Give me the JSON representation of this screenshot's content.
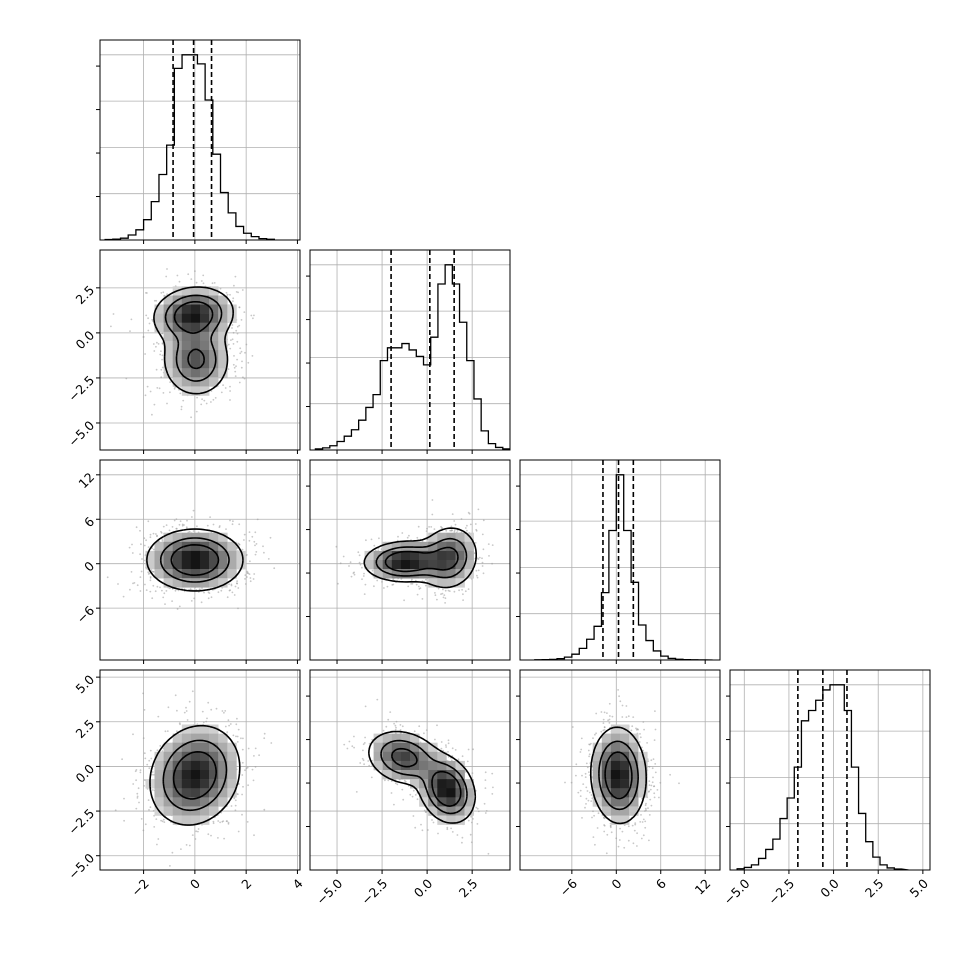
{
  "chart_data": {
    "type": "corner",
    "grid": true,
    "xlabel": "",
    "ylabel": "",
    "n_params": 4,
    "axes_ranges": [
      [
        -3.7,
        4.1
      ],
      [
        -6.5,
        4.6
      ],
      [
        -13,
        14
      ],
      [
        -5.8,
        5.4
      ]
    ],
    "ticks": [
      [
        "−2",
        "0",
        "2",
        "4"
      ],
      [
        "−5.0",
        "−2.5",
        "0.0",
        "2.5"
      ],
      [
        "−6",
        "0",
        "6",
        "12"
      ],
      [
        "−5.0",
        "−2.5",
        "0.0",
        "2.5",
        "5.0"
      ]
    ],
    "tick_values": [
      [
        -2,
        0,
        2,
        4
      ],
      [
        -5,
        -2.5,
        0,
        2.5
      ],
      [
        -6,
        0,
        6,
        12
      ],
      [
        -5,
        -2.5,
        0,
        2.5,
        5
      ]
    ],
    "quantiles": [
      [
        -0.85,
        -0.05,
        0.65
      ],
      [
        -2.0,
        0.15,
        1.5
      ],
      [
        -1.8,
        0.3,
        2.3
      ],
      [
        -2.0,
        -0.6,
        0.75
      ]
    ],
    "histograms": [
      {
        "bins": [
          -3.5,
          -3.2,
          -2.9,
          -2.6,
          -2.3,
          -2.0,
          -1.7,
          -1.4,
          -1.1,
          -0.8,
          -0.5,
          -0.2,
          0.1,
          0.4,
          0.7,
          1.0,
          1.3,
          1.6,
          1.9,
          2.2,
          2.5,
          2.8
        ],
        "counts": [
          2,
          4,
          8,
          22,
          45,
          90,
          170,
          290,
          420,
          760,
          820,
          820,
          780,
          620,
          380,
          210,
          120,
          60,
          30,
          15,
          6,
          3
        ]
      },
      {
        "bins": [
          -6.2,
          -5.8,
          -5.4,
          -5.0,
          -4.6,
          -4.2,
          -3.8,
          -3.4,
          -3.0,
          -2.6,
          -2.2,
          -1.8,
          -1.4,
          -1.0,
          -0.6,
          -0.2,
          0.2,
          0.6,
          1.0,
          1.4,
          1.8,
          2.2,
          2.6,
          3.0,
          3.4,
          3.8,
          4.2
        ],
        "counts": [
          5,
          10,
          20,
          40,
          65,
          95,
          140,
          200,
          260,
          420,
          480,
          480,
          500,
          470,
          440,
          400,
          530,
          780,
          870,
          780,
          600,
          420,
          240,
          90,
          30,
          12,
          5
        ]
      },
      {
        "bins": [
          -11,
          -10,
          -9,
          -8,
          -7,
          -6,
          -5,
          -4,
          -3,
          -2,
          -1,
          0,
          1,
          2,
          3,
          4,
          5,
          6,
          7,
          8,
          9,
          10,
          11,
          12
        ],
        "counts": [
          2,
          3,
          5,
          10,
          22,
          45,
          90,
          160,
          260,
          520,
          1000,
          1430,
          1000,
          600,
          270,
          150,
          70,
          30,
          12,
          6,
          3,
          2,
          1
        ]
      },
      {
        "bins": [
          -5.4,
          -5.0,
          -4.6,
          -4.2,
          -3.8,
          -3.4,
          -3.0,
          -2.6,
          -2.2,
          -1.8,
          -1.4,
          -1.0,
          -0.6,
          -0.2,
          0.2,
          0.6,
          1.0,
          1.4,
          1.8,
          2.2,
          2.6,
          3.0,
          3.4,
          3.8
        ],
        "counts": [
          5,
          10,
          20,
          45,
          80,
          120,
          200,
          280,
          400,
          580,
          620,
          660,
          700,
          720,
          720,
          620,
          400,
          220,
          110,
          50,
          20,
          8,
          4
        ]
      }
    ]
  }
}
